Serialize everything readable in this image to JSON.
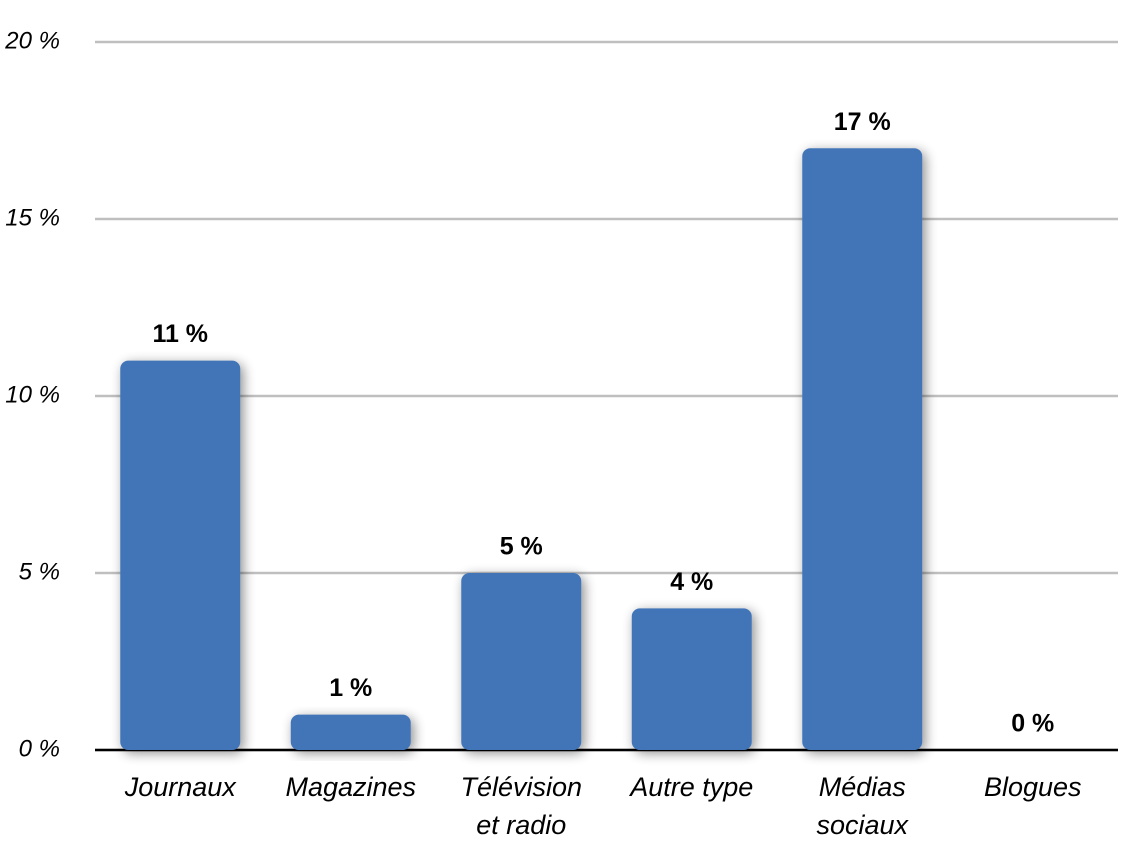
{
  "chart_data": {
    "type": "bar",
    "categories": [
      "Journaux",
      "Magazines",
      "Télévision\net radio",
      "Autre type",
      "Médias\nsociaux",
      "Blogues"
    ],
    "values": [
      11,
      1,
      5,
      4,
      17,
      0
    ],
    "value_labels": [
      "11 %",
      "1 %",
      "5 %",
      "4 %",
      "17 %",
      "0 %"
    ],
    "color": "#4375b7",
    "ylim": [
      0,
      20
    ],
    "yticks": [
      {
        "value": 0,
        "label": "0 %"
      },
      {
        "value": 5,
        "label": "5 %"
      },
      {
        "value": 10,
        "label": "10 %"
      },
      {
        "value": 15,
        "label": "15 %"
      },
      {
        "value": 20,
        "label": "20 %"
      }
    ],
    "grid": true
  }
}
